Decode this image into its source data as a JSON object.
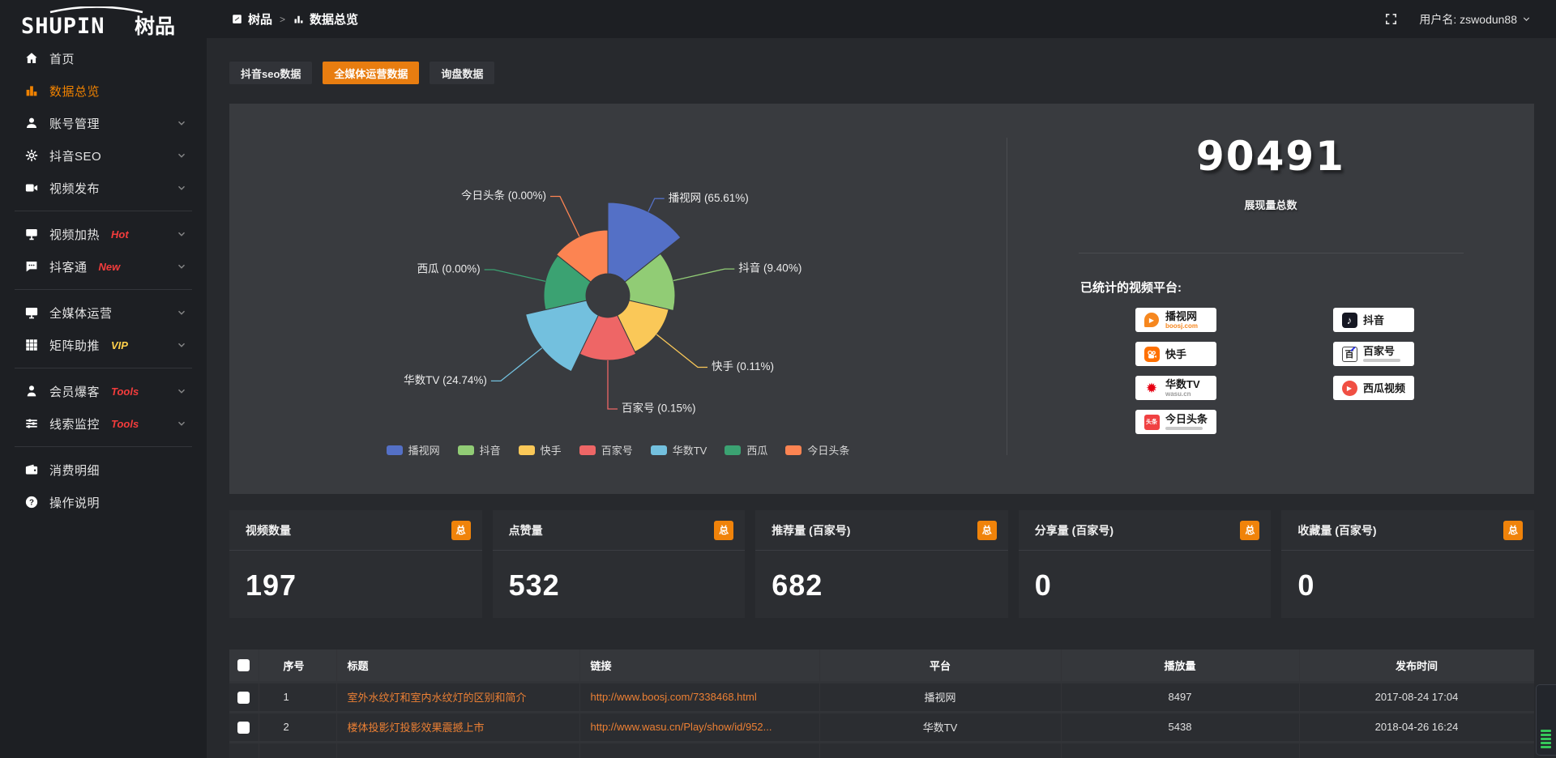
{
  "topbar": {
    "breadcrumb": [
      {
        "label": "树品",
        "icon": "panel-icon"
      },
      {
        "label": "数据总览",
        "icon": "bars-icon"
      }
    ],
    "separator": ">",
    "username_label": "用户名: zswodun88"
  },
  "sidebar": {
    "logo_text": "SHUPIN",
    "logo_cn": "树品",
    "menu": [
      {
        "label": "首页",
        "icon": "home-icon"
      },
      {
        "label": "数据总览",
        "icon": "bar-chart-icon",
        "active": true
      },
      {
        "label": "账号管理",
        "icon": "user-icon",
        "chevron": true
      },
      {
        "label": "抖音SEO",
        "icon": "gear-icon",
        "chevron": true
      },
      {
        "label": "视频发布",
        "icon": "video-icon",
        "chevron": true,
        "divider_after": true
      },
      {
        "label": "视频加热",
        "icon": "tv-icon",
        "badge": "Hot",
        "badge_color": "#f33c3c",
        "chevron": true
      },
      {
        "label": "抖客通",
        "icon": "chat-icon",
        "badge": "New",
        "badge_color": "#f33c3c",
        "chevron": true,
        "divider_after": true
      },
      {
        "label": "全媒体运营",
        "icon": "monitor-icon",
        "chevron": true
      },
      {
        "label": "矩阵助推",
        "icon": "grid-icon",
        "badge": "VIP",
        "badge_color": "#ffd04a",
        "chevron": true,
        "divider_after": true
      },
      {
        "label": "会员爆客",
        "icon": "person-icon",
        "badge": "Tools",
        "badge_color": "#f33c3c",
        "chevron": true
      },
      {
        "label": "线索监控",
        "icon": "sliders-icon",
        "badge": "Tools",
        "badge_color": "#f33c3c",
        "chevron": true,
        "divider_after": true
      },
      {
        "label": "消费明细",
        "icon": "wallet-icon"
      },
      {
        "label": "操作说明",
        "icon": "question-icon"
      }
    ]
  },
  "tabs": [
    {
      "label": "抖音seo数据"
    },
    {
      "label": "全媒体运营数据",
      "active": true
    },
    {
      "label": "询盘数据"
    }
  ],
  "chart_data": {
    "type": "pie",
    "rose": true,
    "unit": "percent",
    "items": [
      {
        "name": "播视网",
        "value": 65.61,
        "color": "#5470c6"
      },
      {
        "name": "抖音",
        "value": 9.4,
        "color": "#91cc75"
      },
      {
        "name": "快手",
        "value": 0.11,
        "color": "#fac858"
      },
      {
        "name": "百家号",
        "value": 0.15,
        "color": "#ee6666"
      },
      {
        "name": "华数TV",
        "value": 24.74,
        "color": "#73c0de"
      },
      {
        "name": "西瓜",
        "value": 0.0,
        "color": "#3ba272"
      },
      {
        "name": "今日头条",
        "value": 0.0,
        "color": "#fc8452"
      }
    ],
    "legend": [
      "播视网",
      "抖音",
      "快手",
      "百家号",
      "华数TV",
      "西瓜",
      "今日头条"
    ],
    "legend_position": "bottom",
    "label_format": "{name} ({value}%)",
    "layout": {
      "center": [
        467,
        237
      ],
      "inner_radius": 27,
      "slice_radii": [
        115,
        83,
        77,
        80,
        104,
        79,
        81
      ],
      "label_line_len": [
        18,
        65,
        65,
        60,
        65,
        65,
        55
      ],
      "equal_angles": true
    }
  },
  "summary": {
    "total_value": "90491",
    "total_label": "展现量总数",
    "platforms_label": "已统计的视频平台:",
    "platform_badges_left": [
      {
        "name": "播视网",
        "logo": "boosj-logo",
        "logo_color": "#f6871f",
        "subtext": "boosj.com",
        "subtext_color": "#f6871f"
      },
      {
        "name": "快手",
        "logo": "kuaishou-logo",
        "logo_color": "#ff7000"
      },
      {
        "name": "华数TV",
        "logo": "wasu-logo",
        "logo_color": "#e60012",
        "subtext": "wasu.cn",
        "subtext_color": "#9a9a9a"
      },
      {
        "name": "今日头条",
        "logo": "toutiao-logo",
        "logo_color": "#f04142",
        "subtext_bar": true
      }
    ],
    "platform_badges_right": [
      {
        "name": "抖音",
        "logo": "douyin-logo",
        "logo_color": "#161823"
      },
      {
        "name": "百家号",
        "logo": "baijiahao-logo",
        "logo_color": "#2932e1",
        "subtext_bar": true
      },
      {
        "name": "西瓜视频",
        "logo": "xigua-logo",
        "logo_color": "#f04f43"
      }
    ]
  },
  "stat_cards": [
    {
      "label": "视频数量",
      "badge": "总",
      "value": "197"
    },
    {
      "label": "点赞量",
      "badge": "总",
      "value": "532"
    },
    {
      "label": "推荐量 (百家号)",
      "badge": "总",
      "value": "682"
    },
    {
      "label": "分享量 (百家号)",
      "badge": "总",
      "value": "0"
    },
    {
      "label": "收藏量 (百家号)",
      "badge": "总",
      "value": "0"
    }
  ],
  "table": {
    "headers": [
      "序号",
      "标题",
      "链接",
      "平台",
      "播放量",
      "发布时间"
    ],
    "rows": [
      {
        "index": "1",
        "title": "室外水纹灯和室内水纹灯的区别和简介",
        "link": "http://www.boosj.com/7338468.html",
        "platform": "播视网",
        "plays": "8497",
        "published": "2017-08-24 17:04"
      },
      {
        "index": "2",
        "title": "楼体投影灯投影效果震撼上市",
        "link": "http://www.wasu.cn/Play/show/id/952...",
        "platform": "华数TV",
        "plays": "5438",
        "published": "2018-04-26 16:24"
      }
    ]
  },
  "colors": {
    "accent": "#e87d10",
    "link": "#ec8034",
    "sidebar_active": "#f08200",
    "panel_bg": "#393b3f"
  }
}
